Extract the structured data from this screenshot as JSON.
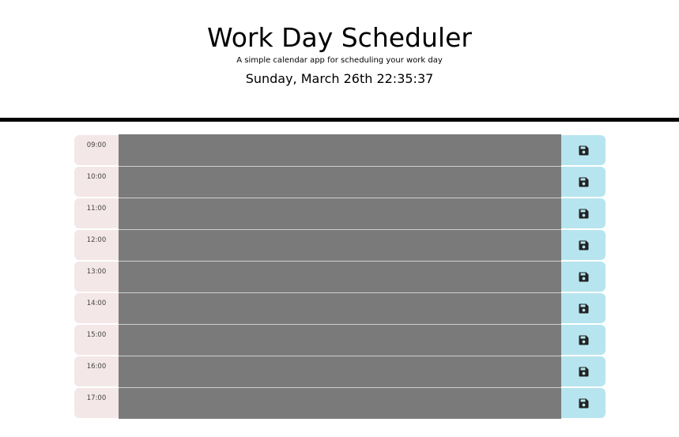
{
  "header": {
    "title": "Work Day Scheduler",
    "subtitle": "A simple calendar app for scheduling your work day",
    "current_date": "Sunday, March 26th 22:35:37"
  },
  "rows": [
    {
      "hour": "09:00",
      "task": "",
      "save_icon": "floppy-disk-icon"
    },
    {
      "hour": "10:00",
      "task": "",
      "save_icon": "floppy-disk-icon"
    },
    {
      "hour": "11:00",
      "task": "",
      "save_icon": "floppy-disk-icon"
    },
    {
      "hour": "12:00",
      "task": "",
      "save_icon": "floppy-disk-icon"
    },
    {
      "hour": "13:00",
      "task": "",
      "save_icon": "floppy-disk-icon"
    },
    {
      "hour": "14:00",
      "task": "",
      "save_icon": "floppy-disk-icon"
    },
    {
      "hour": "15:00",
      "task": "",
      "save_icon": "floppy-disk-icon"
    },
    {
      "hour": "16:00",
      "task": "",
      "save_icon": "floppy-disk-icon"
    },
    {
      "hour": "17:00",
      "task": "",
      "save_icon": "floppy-disk-icon"
    }
  ],
  "colors": {
    "hour_bg": "#f4e7e8",
    "past_block": "#7a7a7a",
    "save_bg": "#b7e5ef",
    "divider": "#000000"
  }
}
